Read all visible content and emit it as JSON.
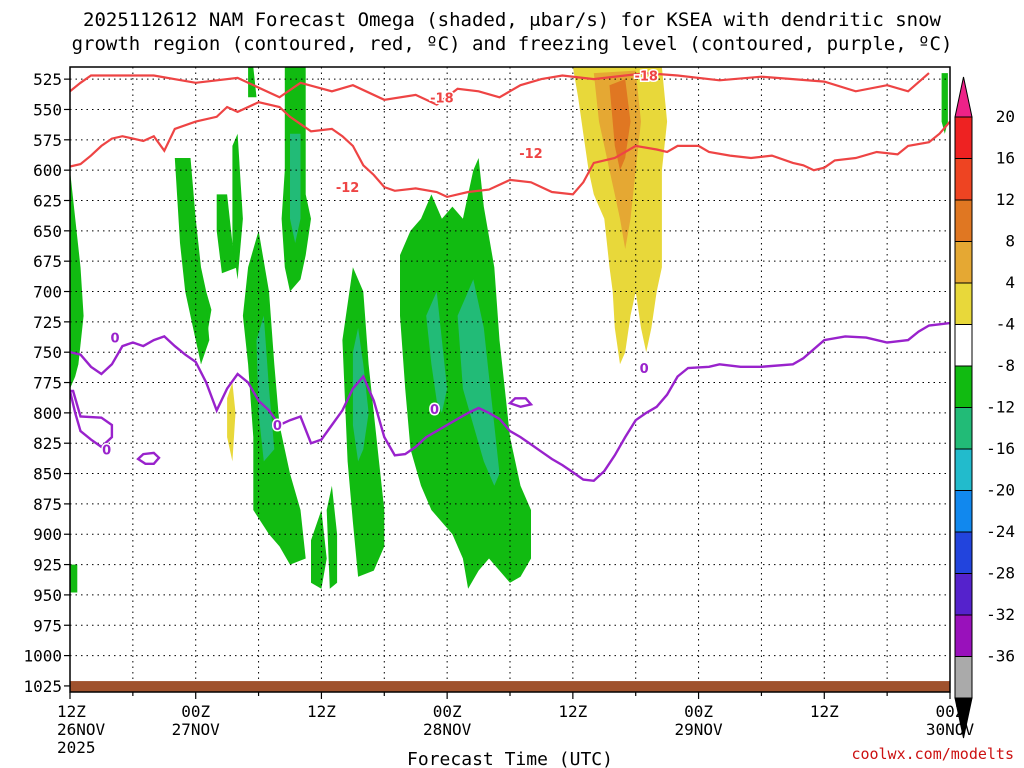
{
  "title_line1": "2025112612 NAM Forecast Omega (shaded, μbar/s) for KSEA with dendritic snow",
  "title_line2": "growth region (contoured, red, ºC) and freezing level (contoured, purple, ºC)",
  "credit": "coolwx.com/modelts",
  "chart_data": {
    "type": "contour",
    "xlabel": "Forecast Time (UTC)",
    "ylabel": "",
    "y_axis_inverted": true,
    "ylim": [
      1030,
      515
    ],
    "yticks": [
      525,
      550,
      575,
      600,
      625,
      650,
      675,
      700,
      725,
      750,
      775,
      800,
      825,
      850,
      875,
      900,
      925,
      950,
      975,
      1000,
      1025
    ],
    "xlim": [
      0,
      84
    ],
    "xticks": [
      {
        "hour": 0,
        "line1": "12Z",
        "line2": "26NOV",
        "line3": "2025"
      },
      {
        "hour": 12,
        "line1": "00Z",
        "line2": "27NOV",
        "line3": ""
      },
      {
        "hour": 24,
        "line1": "12Z",
        "line2": "",
        "line3": ""
      },
      {
        "hour": 36,
        "line1": "00Z",
        "line2": "28NOV",
        "line3": ""
      },
      {
        "hour": 48,
        "line1": "12Z",
        "line2": "",
        "line3": ""
      },
      {
        "hour": 60,
        "line1": "00Z",
        "line2": "29NOV",
        "line3": ""
      },
      {
        "hour": 72,
        "line1": "12Z",
        "line2": "",
        "line3": ""
      },
      {
        "hour": 84,
        "line1": "00Z",
        "line2": "30NOV",
        "line3": ""
      }
    ],
    "grid": true,
    "colorbar": {
      "labels": [
        "20",
        "16",
        "12",
        "8",
        "4",
        "-4",
        "-8",
        "-12",
        "-16",
        "-20",
        "-24",
        "-28",
        "-32",
        "-36"
      ],
      "colors": [
        "#ee2222",
        "#ee4422",
        "#e07722",
        "#e5a833",
        "#e8d83a",
        "#ffffff",
        "#11bb11",
        "#22bb77",
        "#22bbcc",
        "#1188ee",
        "#2244dd",
        "#5522cc",
        "#9911bb",
        "#aaaaaa"
      ],
      "top_color": "#ee2288",
      "bottom_color": "#000000"
    },
    "contours": {
      "red_minus18": [
        [
          0,
          535
        ],
        [
          1,
          528
        ],
        [
          2,
          522
        ],
        [
          8,
          522
        ],
        [
          12,
          528
        ],
        [
          16,
          524
        ],
        [
          20,
          540
        ],
        [
          22,
          528
        ],
        [
          25,
          535
        ],
        [
          27,
          530
        ],
        [
          30,
          542
        ],
        [
          33,
          538
        ],
        [
          35,
          546
        ],
        [
          37,
          533
        ],
        [
          39,
          535
        ],
        [
          41,
          540
        ],
        [
          43,
          530
        ],
        [
          45,
          525
        ],
        [
          47,
          522
        ],
        [
          50,
          525
        ],
        [
          53,
          522
        ],
        [
          55,
          520
        ],
        [
          58,
          522
        ],
        [
          62,
          526
        ],
        [
          66,
          523
        ],
        [
          69,
          525
        ],
        [
          72,
          527
        ],
        [
          75,
          535
        ],
        [
          78,
          530
        ],
        [
          80,
          535
        ],
        [
          82,
          520
        ]
      ],
      "red_minus12": [
        [
          0,
          597
        ],
        [
          1,
          595
        ],
        [
          2,
          588
        ],
        [
          3,
          580
        ],
        [
          4,
          574
        ],
        [
          5,
          572
        ],
        [
          6,
          574
        ],
        [
          7,
          576
        ],
        [
          8,
          572
        ],
        [
          9,
          584
        ],
        [
          10,
          566
        ],
        [
          12,
          560
        ],
        [
          14,
          556
        ],
        [
          15,
          548
        ],
        [
          16,
          552
        ],
        [
          18,
          544
        ],
        [
          20,
          548
        ],
        [
          21,
          556
        ],
        [
          23,
          568
        ],
        [
          25,
          566
        ],
        [
          26,
          572
        ],
        [
          27,
          580
        ],
        [
          28,
          596
        ],
        [
          29,
          604
        ],
        [
          30,
          614
        ],
        [
          31,
          617
        ],
        [
          33,
          615
        ],
        [
          35,
          618
        ],
        [
          36,
          622
        ],
        [
          38,
          618
        ],
        [
          40,
          616
        ],
        [
          42,
          608
        ],
        [
          44,
          610
        ],
        [
          46,
          618
        ],
        [
          48,
          620
        ],
        [
          49,
          610
        ],
        [
          50,
          594
        ],
        [
          52,
          590
        ],
        [
          53,
          585
        ],
        [
          54,
          580
        ],
        [
          56,
          583
        ],
        [
          57,
          585
        ],
        [
          58,
          580
        ],
        [
          60,
          580
        ],
        [
          61,
          585
        ],
        [
          63,
          588
        ],
        [
          65,
          590
        ],
        [
          67,
          588
        ],
        [
          69,
          594
        ],
        [
          70,
          596
        ],
        [
          71,
          600
        ],
        [
          72,
          598
        ],
        [
          73,
          592
        ],
        [
          75,
          590
        ],
        [
          77,
          585
        ],
        [
          79,
          587
        ],
        [
          80,
          580
        ],
        [
          82,
          577
        ],
        [
          83,
          570
        ],
        [
          84,
          560
        ]
      ],
      "purple_0": [
        [
          0,
          750
        ],
        [
          1,
          752
        ],
        [
          2,
          762
        ],
        [
          3,
          768
        ],
        [
          4,
          760
        ],
        [
          5,
          745
        ],
        [
          6,
          742
        ],
        [
          7,
          745
        ],
        [
          8,
          740
        ],
        [
          9,
          737
        ],
        [
          10,
          745
        ],
        [
          11,
          752
        ],
        [
          12,
          758
        ],
        [
          13,
          775
        ],
        [
          14,
          798
        ],
        [
          15,
          780
        ],
        [
          16,
          768
        ],
        [
          17,
          775
        ],
        [
          18,
          790
        ],
        [
          19,
          798
        ],
        [
          20,
          810
        ],
        [
          21,
          806
        ],
        [
          22,
          803
        ],
        [
          23,
          825
        ],
        [
          24,
          822
        ],
        [
          25,
          810
        ],
        [
          26,
          798
        ],
        [
          27,
          780
        ],
        [
          28,
          770
        ],
        [
          29,
          790
        ],
        [
          30,
          820
        ],
        [
          31,
          835
        ],
        [
          32,
          834
        ],
        [
          33,
          828
        ],
        [
          34,
          820
        ],
        [
          35,
          815
        ],
        [
          36,
          810
        ],
        [
          37,
          805
        ],
        [
          38,
          800
        ],
        [
          39,
          796
        ],
        [
          40,
          800
        ],
        [
          41,
          805
        ],
        [
          42,
          815
        ],
        [
          43,
          820
        ],
        [
          44,
          826
        ],
        [
          45,
          832
        ],
        [
          46,
          838
        ],
        [
          47,
          843
        ],
        [
          48,
          849
        ],
        [
          49,
          855
        ],
        [
          50,
          856
        ],
        [
          51,
          848
        ],
        [
          52,
          835
        ],
        [
          53,
          820
        ],
        [
          54,
          806
        ],
        [
          55,
          800
        ],
        [
          56,
          795
        ],
        [
          57,
          785
        ],
        [
          58,
          770
        ],
        [
          59,
          763
        ],
        [
          61,
          762
        ],
        [
          62,
          760
        ],
        [
          64,
          762
        ],
        [
          66,
          762
        ],
        [
          69,
          760
        ],
        [
          70,
          755
        ],
        [
          72,
          740
        ],
        [
          74,
          737
        ],
        [
          76,
          738
        ],
        [
          78,
          742
        ],
        [
          80,
          740
        ],
        [
          81,
          733
        ],
        [
          82,
          728
        ],
        [
          83,
          727
        ],
        [
          84,
          726
        ]
      ],
      "purple_small1": [
        [
          0,
          782
        ],
        [
          0.5,
          800
        ],
        [
          1,
          815
        ],
        [
          2,
          822
        ],
        [
          3,
          828
        ],
        [
          4,
          820
        ],
        [
          4,
          810
        ],
        [
          3,
          804
        ],
        [
          1,
          803
        ],
        [
          0.3,
          782
        ]
      ],
      "purple_small2": [
        [
          6.5,
          838
        ],
        [
          7.2,
          842
        ],
        [
          8,
          842
        ],
        [
          8.5,
          837
        ],
        [
          8,
          833
        ],
        [
          7,
          834
        ],
        [
          6.5,
          838
        ]
      ],
      "purple_small3": [
        [
          42,
          792
        ],
        [
          42.5,
          788
        ],
        [
          43.5,
          788
        ],
        [
          44,
          793
        ],
        [
          43,
          795
        ],
        [
          42,
          792
        ]
      ]
    }
  }
}
